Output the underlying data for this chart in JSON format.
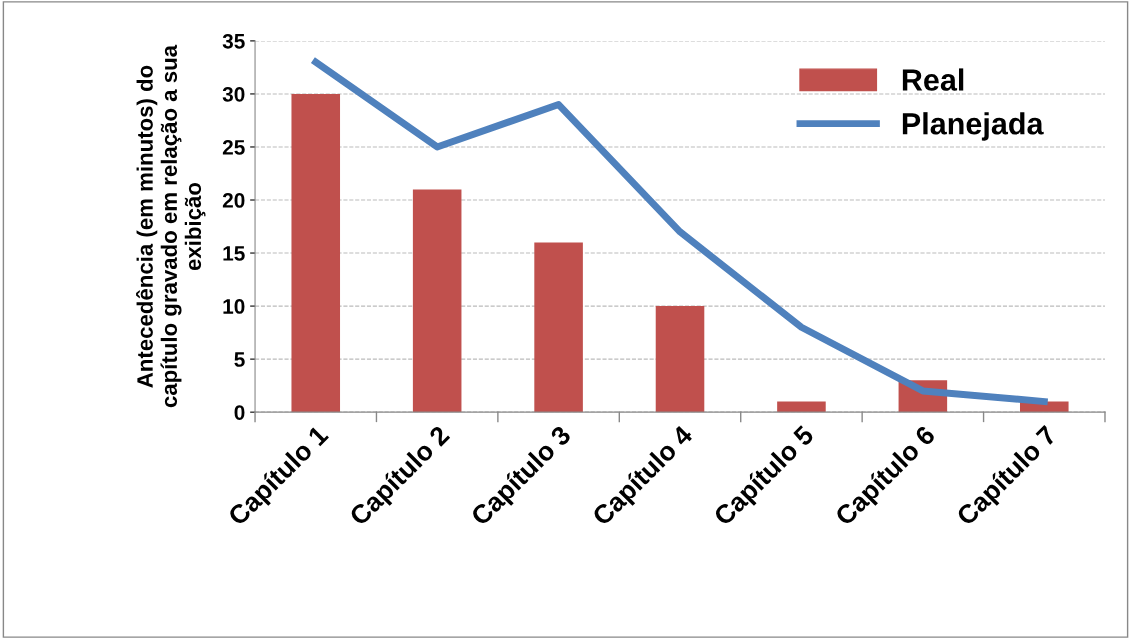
{
  "chart_data": {
    "type": "bar",
    "ylabel": "Antecedência (em minutos) do\ncapítulo gravado em relação a sua\nexibição",
    "categories": [
      "Capítulo 1",
      "Capítulo 2",
      "Capítulo 3",
      "Capítulo 4",
      "Capítulo 5",
      "Capítulo 6",
      "Capítulo 7"
    ],
    "series": [
      {
        "name": "Real",
        "color": "#c0504d",
        "values": [
          30,
          21,
          16,
          10,
          1,
          3,
          1
        ]
      },
      {
        "name": "Planejada",
        "type": "line",
        "color": "#4f81bd",
        "values": [
          33,
          25,
          29,
          17,
          8,
          2,
          1
        ]
      }
    ],
    "ylim": [
      0,
      35
    ],
    "yticks": [
      0,
      5,
      10,
      15,
      20,
      25,
      30,
      35
    ],
    "grid": "y",
    "legend": "top right",
    "marker": "none",
    "line_style": "solid"
  }
}
